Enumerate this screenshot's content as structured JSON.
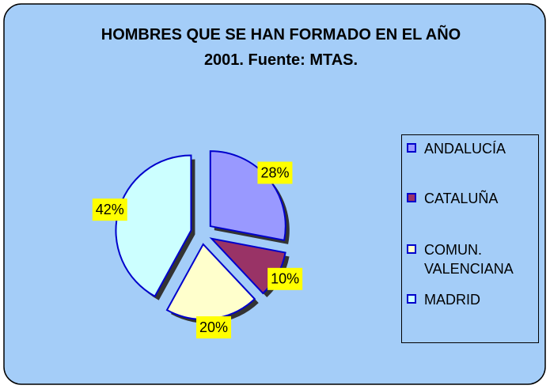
{
  "chart_data": {
    "type": "pie",
    "title": "HOMBRES QUE SE HAN FORMADO EN EL AÑO 2001. Fuente: MTAS.",
    "categories": [
      "ANDALUCÍA",
      "CATALUÑA",
      "COMUN. VALENCIANA",
      "MADRID"
    ],
    "values": [
      28,
      10,
      20,
      42
    ],
    "value_labels": [
      "28%",
      "10%",
      "20%",
      "42%"
    ],
    "colors": [
      "#9999ff",
      "#993366",
      "#ffffcc",
      "#ccffff"
    ],
    "legend": "right"
  }
}
